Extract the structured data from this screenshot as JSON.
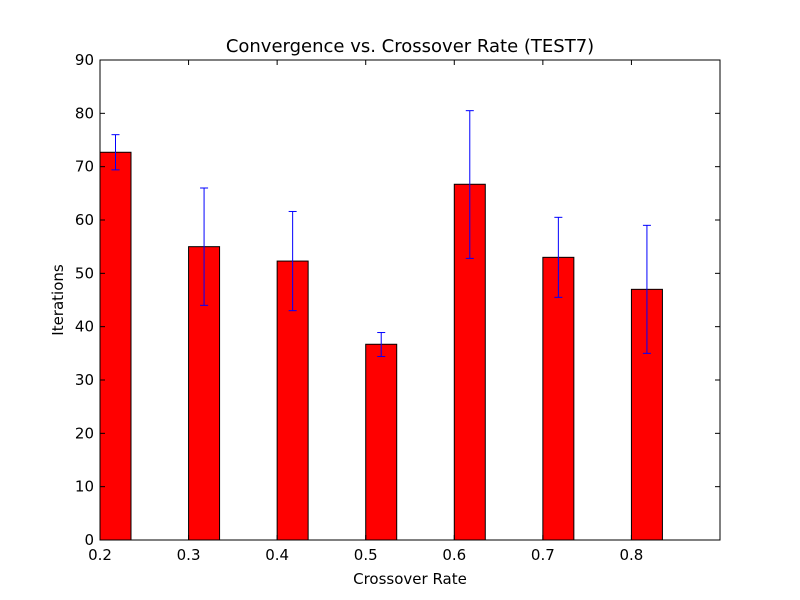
{
  "chart_data": {
    "type": "bar",
    "title": "Convergence vs. Crossover Rate (TEST7)",
    "xlabel": "Crossover Rate",
    "ylabel": "Iterations",
    "xlim": [
      0.2,
      0.9
    ],
    "ylim": [
      0,
      90
    ],
    "bar_width": 0.035,
    "x_ticks": [
      0.2,
      0.3,
      0.4,
      0.5,
      0.6,
      0.7,
      0.8
    ],
    "x_tick_labels": [
      "0.2",
      "0.3",
      "0.4",
      "0.5",
      "0.6",
      "0.7",
      "0.8"
    ],
    "y_ticks": [
      0,
      10,
      20,
      30,
      40,
      50,
      60,
      70,
      80,
      90
    ],
    "y_tick_labels": [
      "0",
      "10",
      "20",
      "30",
      "40",
      "50",
      "60",
      "70",
      "80",
      "90"
    ],
    "grid": false,
    "bar_color": "#ff0000",
    "error_color": "#0000ff",
    "points": [
      {
        "x": 0.2,
        "value": 72.7,
        "err_low": 69.4,
        "err_high": 76.0
      },
      {
        "x": 0.3,
        "value": 55.0,
        "err_low": 44.0,
        "err_high": 66.0
      },
      {
        "x": 0.4,
        "value": 52.3,
        "err_low": 43.0,
        "err_high": 61.6
      },
      {
        "x": 0.5,
        "value": 36.7,
        "err_low": 34.4,
        "err_high": 38.9
      },
      {
        "x": 0.6,
        "value": 66.7,
        "err_low": 52.8,
        "err_high": 80.5
      },
      {
        "x": 0.7,
        "value": 53.0,
        "err_low": 45.5,
        "err_high": 60.5
      },
      {
        "x": 0.8,
        "value": 47.0,
        "err_low": 35.0,
        "err_high": 59.0
      }
    ]
  }
}
